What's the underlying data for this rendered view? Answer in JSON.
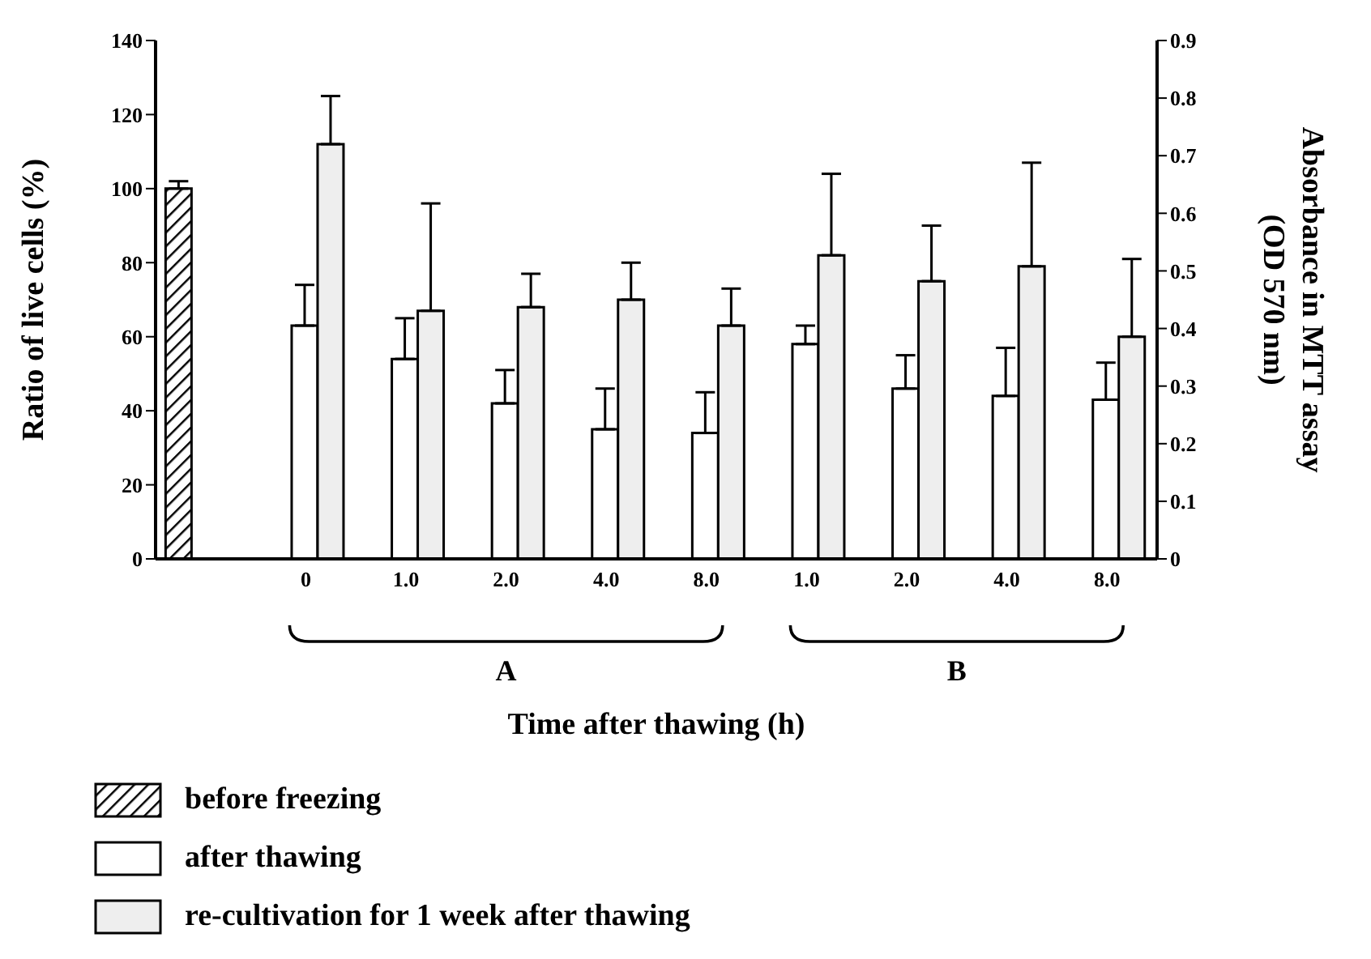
{
  "chart_data": {
    "type": "bar",
    "xlabel": "Time after thawing (h)",
    "ylabel": "Ratio of live cells (%)",
    "y2label": "Absorbance in MTT assay (OD 570 nm)",
    "categories": [
      null,
      "0",
      "1.0",
      "2.0",
      "4.0",
      "8.0",
      "1.0",
      "2.0",
      "4.0",
      "8.0"
    ],
    "series": [
      {
        "name": "before freezing",
        "color": "#000000",
        "values": [
          100,
          null,
          null,
          null,
          null,
          null,
          null,
          null,
          null,
          null
        ],
        "errors": [
          [
            100,
            102
          ],
          null,
          null,
          null,
          null,
          null,
          null,
          null,
          null,
          null
        ]
      },
      {
        "name": "after thawing",
        "color": "#ffffff",
        "values": [
          null,
          63,
          54,
          42,
          35,
          34,
          58,
          46,
          44,
          43
        ],
        "errors": [
          null,
          [
            63,
            74
          ],
          [
            54,
            65
          ],
          [
            42,
            51
          ],
          [
            35,
            46
          ],
          [
            34,
            45
          ],
          [
            58,
            63
          ],
          [
            46,
            55
          ],
          [
            44,
            57
          ],
          [
            43,
            53
          ]
        ]
      },
      {
        "name": "re-cultivation for 1 week after thawing",
        "color": "#eeeeee",
        "values": [
          null,
          112,
          67,
          68,
          70,
          63,
          82,
          75,
          79,
          60
        ],
        "errors": [
          null,
          [
            112,
            125
          ],
          [
            67,
            96
          ],
          [
            68,
            77
          ],
          [
            70,
            80
          ],
          [
            63,
            73
          ],
          [
            82,
            104
          ],
          [
            75,
            90
          ],
          [
            79,
            107
          ],
          [
            60,
            81
          ]
        ]
      }
    ],
    "annotations": [
      "A",
      "B"
    ],
    "ylim": [
      0,
      140
    ],
    "yticks": [
      0,
      20,
      40,
      60,
      80,
      100,
      120,
      140
    ],
    "y2lim": [
      0,
      0.9
    ],
    "y2ticks": [
      0,
      0.1,
      0.2,
      0.3,
      0.4,
      0.5,
      0.6,
      0.7,
      0.8,
      0.9
    ],
    "grid": false,
    "legend": "bottom"
  }
}
